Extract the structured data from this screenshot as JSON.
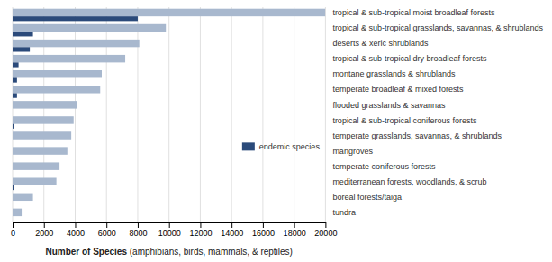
{
  "chart_data": {
    "type": "bar",
    "orientation": "horizontal",
    "xlabel": "Number of Species (amphibians, birds, mammals, & reptiles)",
    "categories": [
      "tundra",
      "boreal forests/taiga",
      "mediterranean forests, woodlands, & scrub",
      "temperate coniferous forests",
      "mangroves",
      "temperate grasslands, savannas, & shrublands",
      "tropical & sub-tropical coniferous forests",
      "flooded grasslands & savannas",
      "temperate broadleaf & mixed forests",
      "montane grasslands & shrublands",
      "tropical & sub-tropical dry broadleaf forests",
      "deserts & xeric shrublands",
      "tropical & sub-tropical grasslands, savannas, & shrublands",
      "tropical & sub-tropical moist broadleaf forests"
    ],
    "series": [
      {
        "color": "#a8b8ce",
        "values": [
          580,
          1300,
          2800,
          3000,
          3500,
          3750,
          3900,
          4100,
          5600,
          5700,
          7200,
          8100,
          9800,
          20000
        ]
      },
      {
        "name": "endemic species",
        "color": "#2b4a7a",
        "values": [
          0,
          0,
          100,
          0,
          0,
          0,
          80,
          0,
          280,
          280,
          380,
          1100,
          1300,
          8000
        ]
      }
    ],
    "xlim": [
      0,
      20000
    ],
    "xticks": [
      0,
      2000,
      4000,
      6000,
      8000,
      10000,
      12000,
      14000,
      16000,
      18000,
      20000
    ],
    "grid": true,
    "legend": "right"
  }
}
